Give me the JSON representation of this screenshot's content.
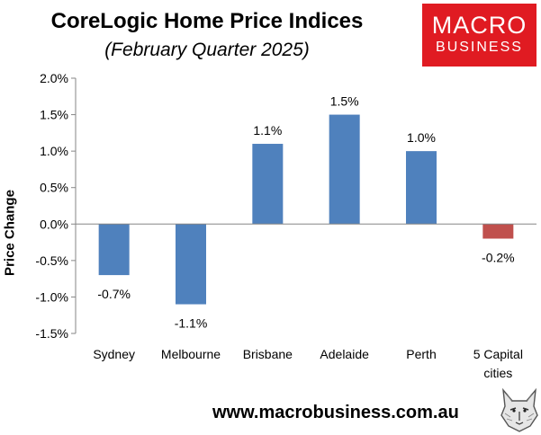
{
  "header": {
    "title": "CoreLogic Home Price Indices",
    "subtitle": "(February Quarter 2025)"
  },
  "logo": {
    "top": "MACRO",
    "bottom": "BUSINESS",
    "bg_color": "#e01b22"
  },
  "footer": {
    "url": "www.macrobusiness.com.au",
    "mascot_icon": "wolf-icon"
  },
  "chart_data": {
    "type": "bar",
    "title": "CoreLogic Home Price Indices",
    "subtitle": "(February Quarter 2025)",
    "xlabel": "",
    "ylabel": "Price Change",
    "categories": [
      "Sydney",
      "Melbourne",
      "Brisbane",
      "Adelaide",
      "Perth",
      "5 Capital cities"
    ],
    "category_lines": [
      [
        "Sydney"
      ],
      [
        "Melbourne"
      ],
      [
        "Brisbane"
      ],
      [
        "Adelaide"
      ],
      [
        "Perth"
      ],
      [
        "5 Capital",
        "cities"
      ]
    ],
    "values": [
      -0.7,
      -1.1,
      1.1,
      1.5,
      1.0,
      -0.2
    ],
    "data_labels": [
      "-0.7%",
      "-1.1%",
      "1.1%",
      "1.5%",
      "1.0%",
      "-0.2%"
    ],
    "colors": [
      "#4f81bd",
      "#4f81bd",
      "#4f81bd",
      "#4f81bd",
      "#4f81bd",
      "#c0504d"
    ],
    "ylim": [
      -1.5,
      2.0
    ],
    "yticks": [
      2.0,
      1.5,
      1.0,
      0.5,
      0.0,
      -0.5,
      -1.0,
      -1.5
    ],
    "ytick_labels": [
      "2.0%",
      "1.5%",
      "1.0%",
      "0.5%",
      "0.0%",
      "-0.5%",
      "-1.0%",
      "-1.5%"
    ],
    "grid": false,
    "legend": "none"
  }
}
